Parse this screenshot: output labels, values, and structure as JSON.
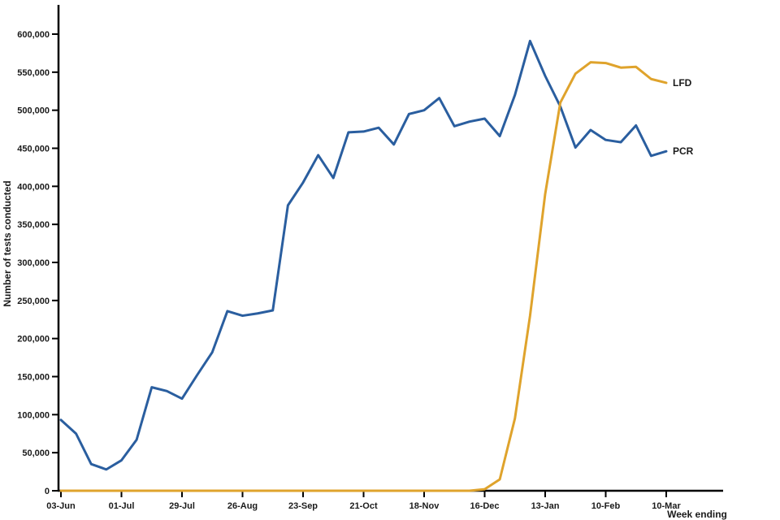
{
  "chart_data": {
    "type": "line",
    "title": "",
    "xlabel": "Week ending",
    "ylabel": "Number of tests conducted",
    "ylim": [
      0,
      600000
    ],
    "y_tick_step": 50000,
    "y_tick_labels": [
      "0",
      "50,000",
      "100,000",
      "150,000",
      "200,000",
      "250,000",
      "300,000",
      "350,000",
      "400,000",
      "450,000",
      "500,000",
      "550,000",
      "600,000"
    ],
    "x_tick_every": 4,
    "x_tick_labels": [
      "03-Jun",
      "01-Jul",
      "29-Jul",
      "26-Aug",
      "23-Sep",
      "21-Oct",
      "18-Nov",
      "16-Dec",
      "13-Jan",
      "10-Feb",
      "10-Mar"
    ],
    "categories": [
      "03-Jun",
      "10-Jun",
      "17-Jun",
      "24-Jun",
      "01-Jul",
      "08-Jul",
      "15-Jul",
      "22-Jul",
      "29-Jul",
      "05-Aug",
      "12-Aug",
      "19-Aug",
      "26-Aug",
      "02-Sep",
      "09-Sep",
      "16-Sep",
      "23-Sep",
      "30-Sep",
      "07-Oct",
      "14-Oct",
      "21-Oct",
      "28-Oct",
      "04-Nov",
      "11-Nov",
      "18-Nov",
      "25-Nov",
      "02-Dec",
      "09-Dec",
      "16-Dec",
      "23-Dec",
      "30-Dec",
      "06-Jan",
      "13-Jan",
      "20-Jan",
      "27-Jan",
      "03-Feb",
      "10-Feb",
      "17-Feb",
      "24-Feb",
      "03-Mar",
      "10-Mar"
    ],
    "series": [
      {
        "name": "PCR",
        "color": "#2a5e9f",
        "values": [
          93000,
          75000,
          35000,
          28000,
          40000,
          67000,
          136000,
          131000,
          121000,
          152000,
          182000,
          236000,
          230000,
          233000,
          237000,
          375000,
          405000,
          441000,
          411000,
          471000,
          472000,
          477000,
          455000,
          495000,
          500000,
          516000,
          479000,
          485000,
          489000,
          466000,
          520000,
          591000,
          545000,
          505000,
          451000,
          474000,
          461000,
          458000,
          480000,
          440000,
          446000
        ]
      },
      {
        "name": "LFD",
        "color": "#dfa32c",
        "values": [
          0,
          0,
          0,
          0,
          0,
          0,
          0,
          0,
          0,
          0,
          0,
          0,
          0,
          0,
          0,
          0,
          0,
          0,
          0,
          0,
          0,
          0,
          0,
          0,
          0,
          0,
          0,
          0,
          2000,
          15000,
          95000,
          230000,
          390000,
          510000,
          548000,
          563000,
          562000,
          556000,
          557000,
          541000,
          536000
        ]
      }
    ],
    "legend_position": "line-end-labels",
    "grid": "off",
    "axis_color": "#000000"
  }
}
